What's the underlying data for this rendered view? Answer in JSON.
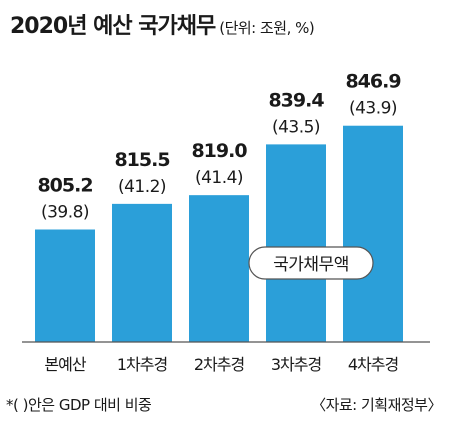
{
  "chart_data": {
    "type": "bar",
    "title": "2020년 예산 국가채무",
    "unit_note": "(단위: 조원, %)",
    "categories": [
      "본예산",
      "1차추경",
      "2차추경",
      "3차추경",
      "4차추경"
    ],
    "values": [
      805.2,
      815.5,
      819.0,
      839.4,
      846.9
    ],
    "value_labels": [
      "805.2",
      "815.5",
      "819.0",
      "839.4",
      "846.9"
    ],
    "gdp_ratio_labels": [
      "(39.8)",
      "(41.2)",
      "(41.4)",
      "(43.5)",
      "(43.9)"
    ],
    "series": [
      {
        "name": "국가채무액",
        "values": [
          805.2,
          815.5,
          819.0,
          839.4,
          846.9
        ]
      }
    ],
    "ylim": [
      760,
      850
    ],
    "grid": false,
    "bar_color": "#2b9fd9"
  },
  "footer": {
    "note": "*(  )안은 GDP 대비 비중",
    "source": "〈자료: 기획재정부〉"
  }
}
